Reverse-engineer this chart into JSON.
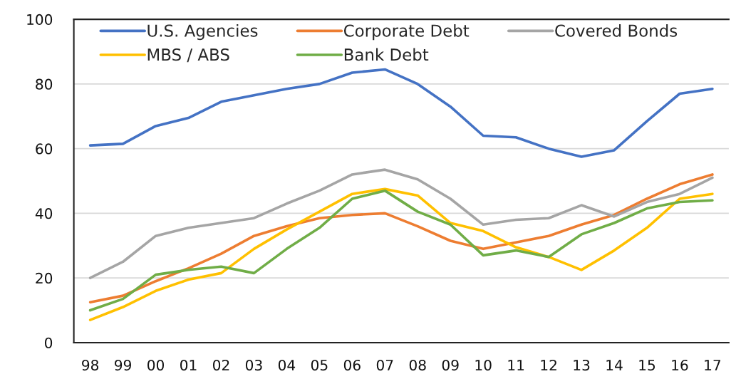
{
  "chart_data": {
    "type": "line",
    "categories": [
      "98",
      "99",
      "00",
      "01",
      "02",
      "03",
      "04",
      "05",
      "06",
      "07",
      "08",
      "09",
      "10",
      "11",
      "12",
      "13",
      "14",
      "15",
      "16",
      "17"
    ],
    "series": [
      {
        "name": "U.S. Agencies",
        "color": "#4472c4",
        "values": [
          61,
          61.5,
          67,
          69.5,
          74.5,
          76.5,
          78.5,
          80,
          83.5,
          84.5,
          80,
          73,
          64,
          63.5,
          60,
          57.5,
          59.5,
          68.5,
          77,
          78.5
        ]
      },
      {
        "name": "Corporate Debt",
        "color": "#ed7d31",
        "values": [
          12.5,
          14.5,
          19,
          23,
          27.5,
          33,
          36,
          38.5,
          39.5,
          40,
          36,
          31.5,
          29,
          31,
          33,
          36.5,
          39.5,
          44.5,
          49,
          52
        ]
      },
      {
        "name": "Covered Bonds",
        "color": "#a5a5a5",
        "values": [
          20,
          25,
          33,
          35.5,
          37,
          38.5,
          43,
          47,
          52,
          53.5,
          50.5,
          44.5,
          36.5,
          38,
          38.5,
          42.5,
          39,
          43.5,
          46,
          51
        ]
      },
      {
        "name": "MBS / ABS",
        "color": "#ffc000",
        "values": [
          7,
          11,
          16,
          19.5,
          21.5,
          29,
          35,
          40.5,
          46,
          47.5,
          45.5,
          37,
          34.5,
          29.5,
          26.5,
          22.5,
          28.5,
          35.5,
          44.5,
          46
        ]
      },
      {
        "name": "Bank Debt",
        "color": "#70ad47",
        "values": [
          10,
          13.5,
          21,
          22.5,
          23.5,
          21.5,
          29,
          35.5,
          44.5,
          47,
          40.5,
          36.5,
          27,
          28.5,
          26.5,
          33.5,
          37,
          41.5,
          43.5,
          44
        ]
      }
    ],
    "ylim": [
      0,
      100
    ],
    "yticks": [
      0,
      20,
      40,
      60,
      80,
      100
    ],
    "grid": "y",
    "legend": "top left"
  }
}
